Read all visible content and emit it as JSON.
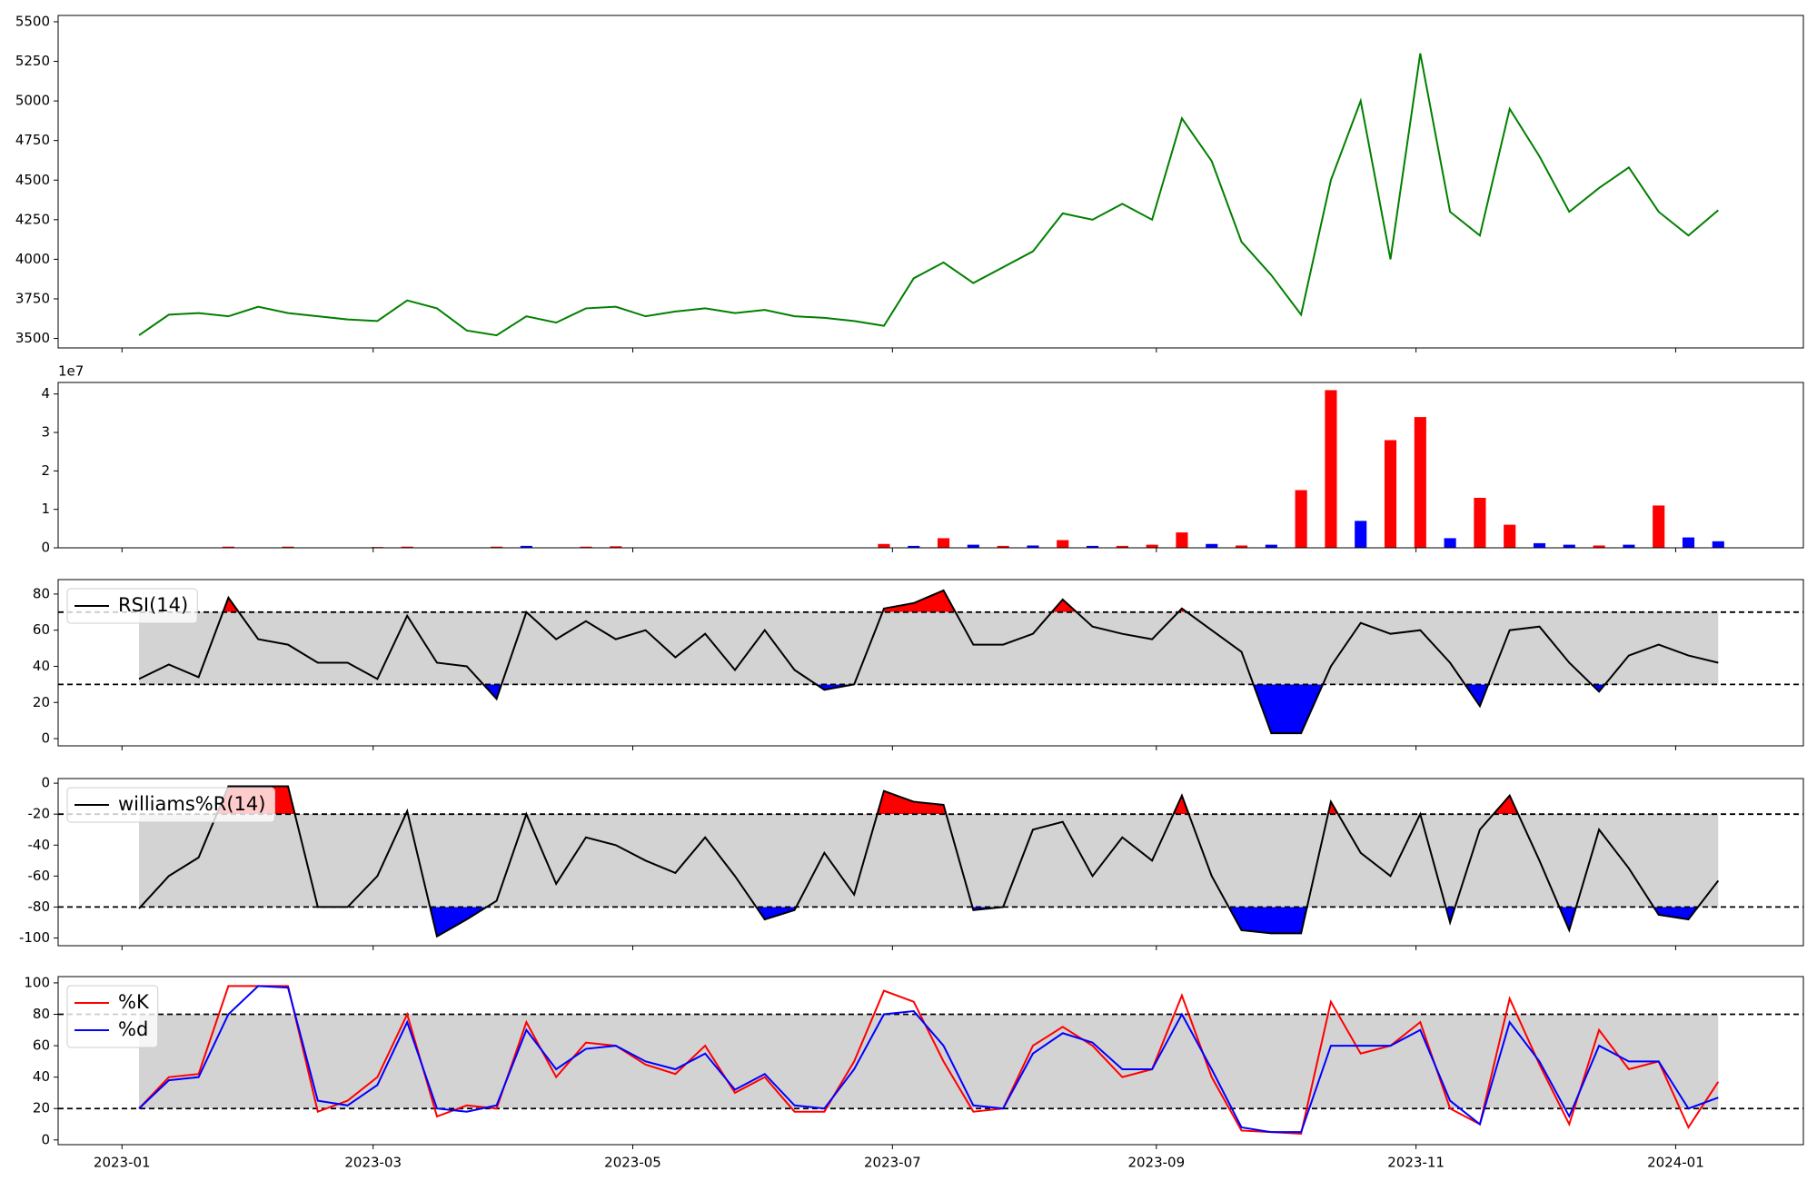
{
  "chart_data": {
    "type": "multi-panel",
    "x": [
      "2023-01-05",
      "2023-01-12",
      "2023-01-19",
      "2023-01-26",
      "2023-02-02",
      "2023-02-09",
      "2023-02-16",
      "2023-02-23",
      "2023-03-02",
      "2023-03-09",
      "2023-03-16",
      "2023-03-23",
      "2023-03-30",
      "2023-04-06",
      "2023-04-13",
      "2023-04-20",
      "2023-04-27",
      "2023-05-04",
      "2023-05-11",
      "2023-05-18",
      "2023-05-25",
      "2023-06-01",
      "2023-06-08",
      "2023-06-15",
      "2023-06-22",
      "2023-06-29",
      "2023-07-06",
      "2023-07-13",
      "2023-07-20",
      "2023-07-27",
      "2023-08-03",
      "2023-08-10",
      "2023-08-17",
      "2023-08-24",
      "2023-08-31",
      "2023-09-07",
      "2023-09-14",
      "2023-09-21",
      "2023-09-28",
      "2023-10-05",
      "2023-10-12",
      "2023-10-19",
      "2023-10-26",
      "2023-11-02",
      "2023-11-09",
      "2023-11-16",
      "2023-11-23",
      "2023-11-30",
      "2023-12-07",
      "2023-12-14",
      "2023-12-21",
      "2023-12-28",
      "2024-01-04",
      "2024-01-11"
    ],
    "xlim": [
      "2022-12-17",
      "2024-01-31"
    ],
    "xticks": [
      {
        "value": "2023-01-01",
        "label": "2023-01"
      },
      {
        "value": "2023-03-01",
        "label": "2023-03"
      },
      {
        "value": "2023-05-01",
        "label": "2023-05"
      },
      {
        "value": "2023-07-01",
        "label": "2023-07"
      },
      {
        "value": "2023-09-01",
        "label": "2023-09"
      },
      {
        "value": "2023-11-01",
        "label": "2023-11"
      },
      {
        "value": "2024-01-01",
        "label": "2024-01"
      }
    ],
    "panels": [
      {
        "type": "line",
        "ylim": [
          3440,
          5540
        ],
        "yticks": [
          3500,
          3750,
          4000,
          4250,
          4500,
          4750,
          5000,
          5250,
          5500
        ],
        "series": [
          {
            "color": "#008000",
            "values": [
              3520,
              3650,
              3660,
              3640,
              3700,
              3660,
              3640,
              3620,
              3610,
              3740,
              3690,
              3550,
              3520,
              3640,
              3600,
              3690,
              3700,
              3640,
              3670,
              3690,
              3660,
              3680,
              3640,
              3630,
              3610,
              3580,
              3880,
              3980,
              3850,
              3950,
              4050,
              4290,
              4250,
              4350,
              4250,
              4890,
              4620,
              4110,
              3900,
              3650,
              4500,
              5000,
              4000,
              5300,
              4300,
              4150,
              4950,
              4650,
              4300,
              4450,
              4580,
              4300,
              4150,
              4310
            ]
          }
        ]
      },
      {
        "type": "bar",
        "offset_label": "1e7",
        "ylim": [
          0,
          43000000
        ],
        "yticks": [
          0,
          {
            "value": 10000000,
            "label": "1"
          },
          {
            "value": 20000000,
            "label": "2"
          },
          {
            "value": 30000000,
            "label": "3"
          },
          {
            "value": 40000000,
            "label": "4"
          }
        ],
        "values": [
          100000,
          50000,
          100000,
          300000,
          100000,
          300000,
          100000,
          100000,
          200000,
          300000,
          100000,
          100000,
          300000,
          500000,
          100000,
          300000,
          400000,
          100000,
          100000,
          100000,
          100000,
          100000,
          100000,
          100000,
          100000,
          1000000,
          500000,
          2500000,
          800000,
          500000,
          600000,
          2000000,
          500000,
          500000,
          800000,
          4000000,
          1000000,
          600000,
          800000,
          15000000,
          41000000,
          7000000,
          28000000,
          34000000,
          2500000,
          13000000,
          6000000,
          1200000,
          800000,
          600000,
          800000,
          11000000,
          2700000,
          1700000
        ],
        "bar_colors": [
          "#ff0000",
          "#0000ff",
          "#ff0000",
          "#ff0000",
          "#0000ff",
          "#ff0000",
          "#0000ff",
          "#ff0000",
          "#ff0000",
          "#ff0000",
          "#0000ff",
          "#ff0000",
          "#ff0000",
          "#0000ff",
          "#ff0000",
          "#ff0000",
          "#ff0000",
          "#0000ff",
          "#ff0000",
          "#0000ff",
          "#ff0000",
          "#0000ff",
          "#ff0000",
          "#0000ff",
          "#ff0000",
          "#ff0000",
          "#0000ff",
          "#ff0000",
          "#0000ff",
          "#ff0000",
          "#0000ff",
          "#ff0000",
          "#0000ff",
          "#ff0000",
          "#ff0000",
          "#ff0000",
          "#0000ff",
          "#ff0000",
          "#0000ff",
          "#ff0000",
          "#ff0000",
          "#0000ff",
          "#ff0000",
          "#ff0000",
          "#0000ff",
          "#ff0000",
          "#ff0000",
          "#0000ff",
          "#0000ff",
          "#ff0000",
          "#0000ff",
          "#ff0000",
          "#0000ff",
          "#0000ff"
        ]
      },
      {
        "type": "line",
        "ylim": [
          -4,
          88
        ],
        "yticks": [
          0,
          20,
          40,
          60,
          80
        ],
        "levels": [
          30,
          70
        ],
        "band_color": "#d3d3d3",
        "fill": {
          "above": "#ff0000",
          "below": "#0000ff"
        },
        "legend": "upper left",
        "series": [
          {
            "name": "RSI(14)",
            "color": "#000000",
            "values": [
              33,
              41,
              34,
              78,
              55,
              52,
              42,
              42,
              33,
              68,
              42,
              40,
              22,
              70,
              55,
              65,
              55,
              60,
              45,
              58,
              38,
              60,
              38,
              27,
              30,
              72,
              75,
              82,
              52,
              52,
              58,
              77,
              62,
              58,
              55,
              72,
              60,
              48,
              3,
              3,
              40,
              64,
              58,
              60,
              42,
              18,
              60,
              62,
              42,
              26,
              46,
              52,
              46,
              42
            ]
          }
        ]
      },
      {
        "type": "line",
        "ylim": [
          -105,
          3
        ],
        "yticks": [
          -100,
          -80,
          -60,
          -40,
          -20,
          0
        ],
        "levels": [
          -80,
          -20
        ],
        "band_color": "#d3d3d3",
        "fill": {
          "above": "#ff0000",
          "below": "#0000ff"
        },
        "legend": "upper left",
        "series": [
          {
            "name": "williams%R(14)",
            "color": "#000000",
            "values": [
              -81,
              -60,
              -48,
              -2,
              -2,
              -2,
              -80,
              -80,
              -60,
              -18,
              -99,
              -88,
              -76,
              -20,
              -65,
              -35,
              -40,
              -50,
              -58,
              -35,
              -60,
              -88,
              -82,
              -45,
              -72,
              -5,
              -12,
              -14,
              -82,
              -80,
              -30,
              -25,
              -60,
              -35,
              -50,
              -8,
              -60,
              -95,
              -97,
              -97,
              -12,
              -45,
              -60,
              -20,
              -90,
              -30,
              -8,
              -50,
              -95,
              -30,
              -55,
              -85,
              -88,
              -63
            ]
          }
        ]
      },
      {
        "type": "line",
        "ylim": [
          -3,
          104
        ],
        "yticks": [
          0,
          20,
          40,
          60,
          80,
          100
        ],
        "levels": [
          20,
          80
        ],
        "band_color": "#d3d3d3",
        "legend": "upper left",
        "series": [
          {
            "name": "%K",
            "color": "#ff0000",
            "values": [
              20,
              40,
              42,
              98,
              98,
              98,
              18,
              25,
              40,
              80,
              15,
              22,
              20,
              75,
              40,
              62,
              60,
              48,
              42,
              60,
              30,
              40,
              18,
              18,
              50,
              95,
              88,
              50,
              18,
              20,
              60,
              72,
              60,
              40,
              45,
              92,
              40,
              6,
              5,
              4,
              88,
              55,
              60,
              75,
              20,
              10,
              90,
              48,
              10,
              70,
              45,
              50,
              8,
              37
            ]
          },
          {
            "name": "%d",
            "color": "#0000ff",
            "values": [
              20,
              38,
              40,
              80,
              98,
              97,
              25,
              22,
              35,
              75,
              20,
              18,
              22,
              70,
              45,
              58,
              60,
              50,
              45,
              55,
              32,
              42,
              22,
              20,
              45,
              80,
              82,
              60,
              22,
              20,
              55,
              68,
              62,
              45,
              45,
              80,
              45,
              8,
              5,
              5,
              60,
              60,
              60,
              70,
              25,
              10,
              75,
              50,
              15,
              60,
              50,
              50,
              20,
              27
            ]
          }
        ]
      }
    ]
  }
}
